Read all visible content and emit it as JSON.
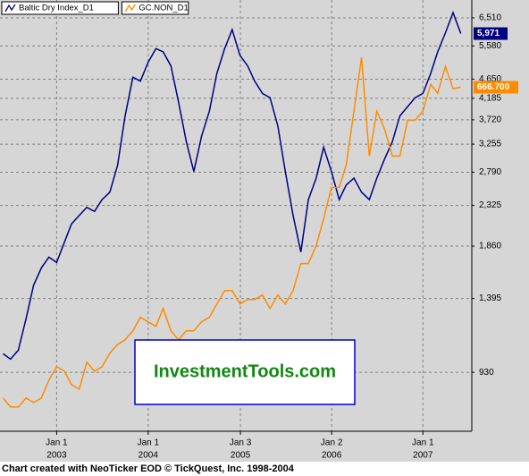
{
  "chart_data": {
    "type": "line",
    "footer": "Chart created with NeoTicker EOD © TickQuest, Inc. 1998-2004",
    "watermark": "InvestmentTools.com",
    "log_scale": true,
    "grid": true,
    "xlim": [
      "2002-05-20",
      "2007-07-15"
    ],
    "xticks": [
      {
        "value": "2003-01-01",
        "label": "Jan 1",
        "sublabel": "2003"
      },
      {
        "value": "2004-01-01",
        "label": "Jan 1",
        "sublabel": "2004"
      },
      {
        "value": "2005-01-03",
        "label": "Jan 3",
        "sublabel": "2005"
      },
      {
        "value": "2006-01-02",
        "label": "Jan 2",
        "sublabel": "2006"
      },
      {
        "value": "2007-01-01",
        "label": "Jan 1",
        "sublabel": "2007"
      }
    ],
    "ylim": [
      673,
      7180
    ],
    "yticks": [
      930,
      {
        "value": 1395,
        "label": "1,395"
      },
      {
        "value": 1860,
        "label": "1,860"
      },
      {
        "value": 2325,
        "label": "2,325"
      },
      {
        "value": 2790,
        "label": "2,790"
      },
      {
        "value": 3255,
        "label": "3,255"
      },
      {
        "value": 3720,
        "label": "3,720"
      },
      {
        "value": 4185,
        "label": "4,185"
      },
      {
        "value": 4650,
        "label": "4,650"
      },
      {
        "value": 5580,
        "label": "5,580"
      },
      {
        "value": 6510,
        "label": "6,510"
      }
    ],
    "y2lim": [
      283,
      764
    ],
    "x": [
      "2002-06",
      "2002-07",
      "2002-08",
      "2002-09",
      "2002-10",
      "2002-11",
      "2002-12",
      "2003-01",
      "2003-02",
      "2003-03",
      "2003-04",
      "2003-05",
      "2003-06",
      "2003-07",
      "2003-08",
      "2003-09",
      "2003-10",
      "2003-11",
      "2003-12",
      "2004-01",
      "2004-02",
      "2004-03",
      "2004-04",
      "2004-05",
      "2004-06",
      "2004-07",
      "2004-08",
      "2004-09",
      "2004-10",
      "2004-11",
      "2004-12",
      "2005-01",
      "2005-02",
      "2005-03",
      "2005-04",
      "2005-05",
      "2005-06",
      "2005-07",
      "2005-08",
      "2005-09",
      "2005-10",
      "2005-11",
      "2005-12",
      "2006-01",
      "2006-02",
      "2006-03",
      "2006-04",
      "2006-05",
      "2006-06",
      "2006-07",
      "2006-08",
      "2006-09",
      "2006-10",
      "2006-11",
      "2006-12",
      "2007-01",
      "2007-02",
      "2007-03",
      "2007-04",
      "2007-05",
      "2007-06"
    ],
    "series": [
      {
        "name": "Baltic Dry Index_D1",
        "color": "#000080",
        "last_value_label": "5,971",
        "values": [
          1030,
          1000,
          1050,
          1250,
          1500,
          1650,
          1750,
          1700,
          1900,
          2100,
          2200,
          2300,
          2250,
          2400,
          2500,
          2900,
          3800,
          4700,
          4600,
          5100,
          5500,
          5400,
          5000,
          4100,
          3300,
          2800,
          3400,
          3900,
          4800,
          5500,
          6100,
          5300,
          5000,
          4600,
          4300,
          4200,
          3600,
          2800,
          2200,
          1800,
          2400,
          2700,
          3200,
          2800,
          2400,
          2600,
          2700,
          2500,
          2400,
          2700,
          3000,
          3300,
          3800,
          4000,
          4200,
          4300,
          4800,
          5400,
          6000,
          6700,
          5971
        ]
      },
      {
        "name": "GC.NON_D1",
        "color": "#ff8c00",
        "axis": "y2",
        "last_value_label": "666.700",
        "values": [
          320,
          310,
          310,
          320,
          315,
          320,
          340,
          355,
          350,
          335,
          330,
          360,
          350,
          355,
          370,
          380,
          385,
          395,
          410,
          405,
          400,
          420,
          395,
          385,
          395,
          395,
          405,
          410,
          425,
          440,
          440,
          425,
          430,
          430,
          435,
          420,
          435,
          425,
          440,
          470,
          470,
          490,
          520,
          555,
          555,
          580,
          640,
          700,
          590,
          640,
          620,
          590,
          590,
          630,
          630,
          640,
          670,
          660,
          690,
          665,
          666.7
        ]
      }
    ]
  }
}
